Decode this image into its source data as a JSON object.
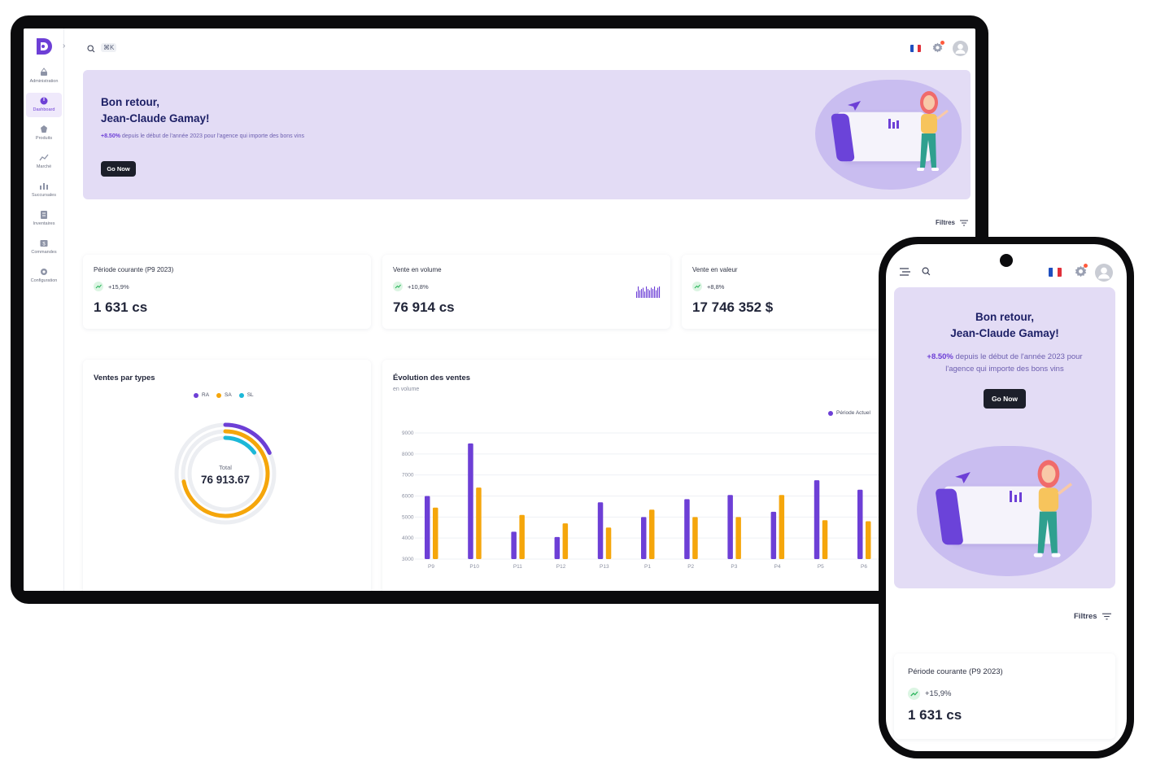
{
  "colors": {
    "primary": "#6d3fd6",
    "orange": "#f5a60b",
    "cyan": "#1cb8d8",
    "banner_bg": "#e3dcf5",
    "dark_button": "#1c1f2a",
    "trend_green": "#2bb55c"
  },
  "sidebar": {
    "items": [
      {
        "label": "Administration",
        "icon": "admin-icon"
      },
      {
        "label": "Dashboard",
        "icon": "dashboard-icon"
      },
      {
        "label": "Produits",
        "icon": "products-icon"
      },
      {
        "label": "Marché",
        "icon": "market-icon"
      },
      {
        "label": "Succursales",
        "icon": "branches-icon"
      },
      {
        "label": "Inventaires",
        "icon": "inventory-icon"
      },
      {
        "label": "Commandes",
        "icon": "orders-icon"
      },
      {
        "label": "Configuration",
        "icon": "configuration-icon"
      }
    ],
    "active_index": 1
  },
  "topbar": {
    "shortcut": "⌘K",
    "language_flag": "fr-flag",
    "notification_dot": true
  },
  "banner": {
    "greeting": "Bon retour,",
    "name": "Jean-Claude Gamay!",
    "highlight": "+8.50%",
    "subtitle": "depuis le début de l'année 2023 pour l'agence qui importe des bons vins",
    "button": "Go Now"
  },
  "filters_label": "Filtres",
  "stats": [
    {
      "title": "Période courante (P9 2023)",
      "trend": "+15,9%",
      "value": "1 631 cs"
    },
    {
      "title": "Vente en volume",
      "trend": "+10,8%",
      "value": "76 914 cs"
    },
    {
      "title": "Vente en valeur",
      "trend": "+8,8%",
      "value": "17 746 352 $"
    }
  ],
  "sales_by_type": {
    "title": "Ventes par types",
    "legend": [
      "RA",
      "SA",
      "SL"
    ],
    "total_label": "Total",
    "total_value": "76 913.67"
  },
  "sales_evolution": {
    "title": "Évolution des ventes",
    "subtitle": "en volume",
    "legend_current": "Période Actuel"
  },
  "chart_data": [
    {
      "type": "pie",
      "title": "Ventes par types",
      "labels": [
        "RA",
        "SA",
        "SL"
      ],
      "values": [
        0.18,
        0.72,
        0.15
      ],
      "total": "76 913.67",
      "legend_position": "top"
    },
    {
      "type": "bar",
      "title": "Évolution des ventes",
      "subtitle": "en volume",
      "categories": [
        "P9",
        "P10",
        "P11",
        "P12",
        "P13",
        "P1",
        "P2",
        "P3",
        "P4",
        "P5",
        "P6"
      ],
      "series": [
        {
          "name": "Période Actuel",
          "color": "#6d3fd6",
          "values": [
            6000,
            8500,
            4300,
            4050,
            5700,
            5000,
            5850,
            6050,
            5250,
            6750,
            6300
          ]
        },
        {
          "name": "",
          "color": "#f5a60b",
          "values": [
            5450,
            6400,
            5100,
            4700,
            4500,
            5350,
            5000,
            5000,
            6050,
            4850,
            4800
          ]
        }
      ],
      "yticks": [
        3000,
        4000,
        5000,
        6000,
        7000,
        8000,
        9000
      ],
      "ylim": [
        3000,
        9000
      ],
      "grid": true,
      "legend_position": "top-right"
    }
  ],
  "sparkline_values": [
    5,
    9,
    6,
    7,
    8,
    5,
    9,
    7,
    6,
    8,
    7,
    9,
    6,
    8,
    9
  ]
}
